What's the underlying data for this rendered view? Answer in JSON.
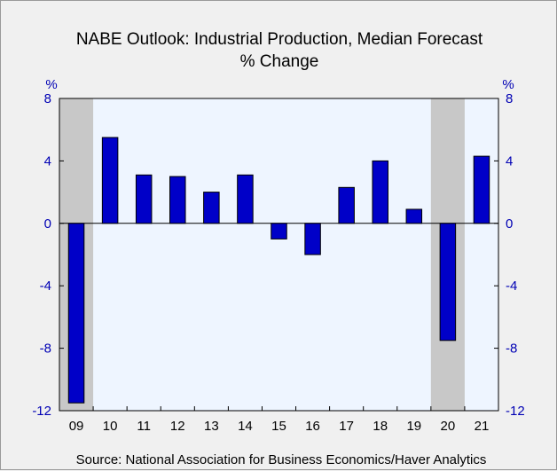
{
  "chart_data": {
    "type": "bar",
    "title": "NABE Outlook: Industrial Production, Median Forecast",
    "subtitle": "% Change",
    "ylabel_left": "%",
    "ylabel_right": "%",
    "categories": [
      "09",
      "10",
      "11",
      "12",
      "13",
      "14",
      "15",
      "16",
      "17",
      "18",
      "19",
      "20",
      "21"
    ],
    "values": [
      -11.5,
      5.5,
      3.1,
      3.0,
      2.0,
      3.1,
      -1.0,
      -2.0,
      2.3,
      4.0,
      0.9,
      -7.5,
      4.3
    ],
    "ylim": [
      -12,
      8
    ],
    "yticks": [
      8,
      4,
      0,
      -4,
      -8,
      -12
    ],
    "recession_shading": [
      "09",
      "20"
    ],
    "grid": false,
    "colors": {
      "bar_fill": "#0000c8",
      "bar_edge": "#000000",
      "plot_bg": "#eef5ff",
      "recession": "#c8c8c8",
      "axis_text": "#0000b4",
      "page_bg": "#f0f0f0"
    },
    "source": "Source:  National Association for Business Economics/Haver Analytics"
  }
}
